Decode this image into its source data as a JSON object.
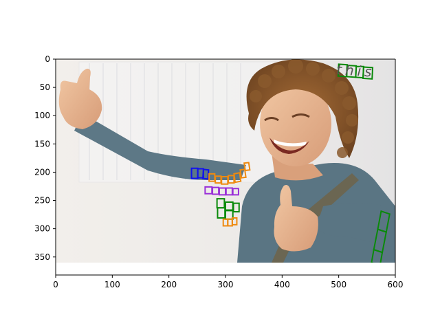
{
  "chart_data": {
    "type": "image",
    "xlim": [
      0,
      600
    ],
    "ylim": [
      360,
      0
    ],
    "x_ticks": [
      0,
      100,
      200,
      300,
      400,
      500,
      600
    ],
    "y_ticks": [
      0,
      50,
      100,
      150,
      200,
      250,
      300,
      350
    ],
    "grid": false,
    "image_content": "young man with curly hair smiling and giving two thumbs up, wearing a blue-grey long-sleeve shirt, plain light background",
    "overlay_words": [
      {
        "text": "this",
        "color": "#0a8a0a"
      }
    ],
    "overlay_boxes": [
      {
        "color": "#1111ee",
        "quad": [
          [
            240,
            193
          ],
          [
            251,
            193
          ],
          [
            251,
            211
          ],
          [
            240,
            211
          ]
        ]
      },
      {
        "color": "#1111ee",
        "quad": [
          [
            251,
            194
          ],
          [
            261,
            194
          ],
          [
            261,
            210
          ],
          [
            251,
            210
          ]
        ]
      },
      {
        "color": "#1111ee",
        "quad": [
          [
            261,
            195
          ],
          [
            270,
            196
          ],
          [
            269,
            212
          ],
          [
            260,
            211
          ]
        ]
      },
      {
        "color": "#ee8a10",
        "quad": [
          [
            271,
            203
          ],
          [
            281,
            203
          ],
          [
            281,
            216
          ],
          [
            271,
            216
          ]
        ]
      },
      {
        "color": "#ee8a10",
        "quad": [
          [
            282,
            207
          ],
          [
            292,
            207
          ],
          [
            292,
            219
          ],
          [
            282,
            219
          ]
        ]
      },
      {
        "color": "#ee8a10",
        "quad": [
          [
            293,
            208
          ],
          [
            304,
            208
          ],
          [
            304,
            221
          ],
          [
            293,
            221
          ]
        ]
      },
      {
        "color": "#ee8a10",
        "quad": [
          [
            305,
            206
          ],
          [
            315,
            206
          ],
          [
            315,
            219
          ],
          [
            305,
            219
          ]
        ]
      },
      {
        "color": "#ee8a10",
        "quad": [
          [
            315,
            203
          ],
          [
            325,
            201
          ],
          [
            327,
            216
          ],
          [
            317,
            218
          ]
        ]
      },
      {
        "color": "#ee8a10",
        "quad": [
          [
            326,
            196
          ],
          [
            334,
            195
          ],
          [
            336,
            209
          ],
          [
            328,
            210
          ]
        ]
      },
      {
        "color": "#ee8a10",
        "quad": [
          [
            333,
            184
          ],
          [
            341,
            183
          ],
          [
            343,
            196
          ],
          [
            335,
            197
          ]
        ]
      },
      {
        "color": "#9a30d8",
        "quad": [
          [
            264,
            226
          ],
          [
            276,
            226
          ],
          [
            276,
            238
          ],
          [
            264,
            238
          ]
        ]
      },
      {
        "color": "#9a30d8",
        "quad": [
          [
            277,
            227
          ],
          [
            288,
            227
          ],
          [
            288,
            239
          ],
          [
            277,
            239
          ]
        ]
      },
      {
        "color": "#9a30d8",
        "quad": [
          [
            289,
            228
          ],
          [
            300,
            228
          ],
          [
            300,
            240
          ],
          [
            289,
            240
          ]
        ]
      },
      {
        "color": "#9a30d8",
        "quad": [
          [
            301,
            228
          ],
          [
            312,
            228
          ],
          [
            312,
            240
          ],
          [
            301,
            240
          ]
        ]
      },
      {
        "color": "#9a30d8",
        "quad": [
          [
            313,
            229
          ],
          [
            323,
            229
          ],
          [
            323,
            240
          ],
          [
            313,
            240
          ]
        ]
      },
      {
        "color": "#0a8a0a",
        "quad": [
          [
            285,
            247
          ],
          [
            298,
            247
          ],
          [
            298,
            263
          ],
          [
            285,
            263
          ]
        ]
      },
      {
        "color": "#0a8a0a",
        "quad": [
          [
            286,
            263
          ],
          [
            299,
            263
          ],
          [
            299,
            281
          ],
          [
            286,
            281
          ]
        ]
      },
      {
        "color": "#0a8a0a",
        "quad": [
          [
            300,
            253
          ],
          [
            313,
            253
          ],
          [
            313,
            267
          ],
          [
            300,
            267
          ]
        ]
      },
      {
        "color": "#0a8a0a",
        "quad": [
          [
            300,
            268
          ],
          [
            313,
            268
          ],
          [
            313,
            283
          ],
          [
            300,
            283
          ]
        ]
      },
      {
        "color": "#0a8a0a",
        "quad": [
          [
            314,
            255
          ],
          [
            324,
            255
          ],
          [
            324,
            270
          ],
          [
            314,
            270
          ]
        ]
      },
      {
        "color": "#ee8a10",
        "quad": [
          [
            296,
            283
          ],
          [
            304,
            283
          ],
          [
            304,
            295
          ],
          [
            296,
            295
          ]
        ]
      },
      {
        "color": "#ee8a10",
        "quad": [
          [
            304,
            283
          ],
          [
            312,
            283
          ],
          [
            312,
            295
          ],
          [
            304,
            295
          ]
        ]
      },
      {
        "color": "#ee8a10",
        "quad": [
          [
            312,
            281
          ],
          [
            320,
            281
          ],
          [
            320,
            293
          ],
          [
            312,
            293
          ]
        ]
      },
      {
        "color": "#0a8a0a",
        "quad": [
          [
            500,
            9
          ],
          [
            515,
            10
          ],
          [
            514,
            31
          ],
          [
            499,
            30
          ]
        ]
      },
      {
        "color": "#0a8a0a",
        "quad": [
          [
            515,
            11
          ],
          [
            531,
            12
          ],
          [
            530,
            32
          ],
          [
            514,
            31
          ]
        ]
      },
      {
        "color": "#0a8a0a",
        "quad": [
          [
            531,
            13
          ],
          [
            544,
            13
          ],
          [
            543,
            33
          ],
          [
            530,
            32
          ]
        ]
      },
      {
        "color": "#0a8a0a",
        "quad": [
          [
            544,
            14
          ],
          [
            560,
            15
          ],
          [
            559,
            35
          ],
          [
            543,
            34
          ]
        ]
      },
      {
        "color": "#0a8a0a",
        "quad": [
          [
            575,
            269
          ],
          [
            590,
            274
          ],
          [
            584,
            306
          ],
          [
            569,
            301
          ]
        ]
      },
      {
        "color": "#0a8a0a",
        "quad": [
          [
            569,
            301
          ],
          [
            584,
            306
          ],
          [
            577,
            342
          ],
          [
            562,
            337
          ]
        ]
      },
      {
        "color": "#0a8a0a",
        "quad": [
          [
            562,
            337
          ],
          [
            577,
            342
          ],
          [
            573,
            365
          ],
          [
            558,
            360
          ]
        ]
      }
    ]
  }
}
